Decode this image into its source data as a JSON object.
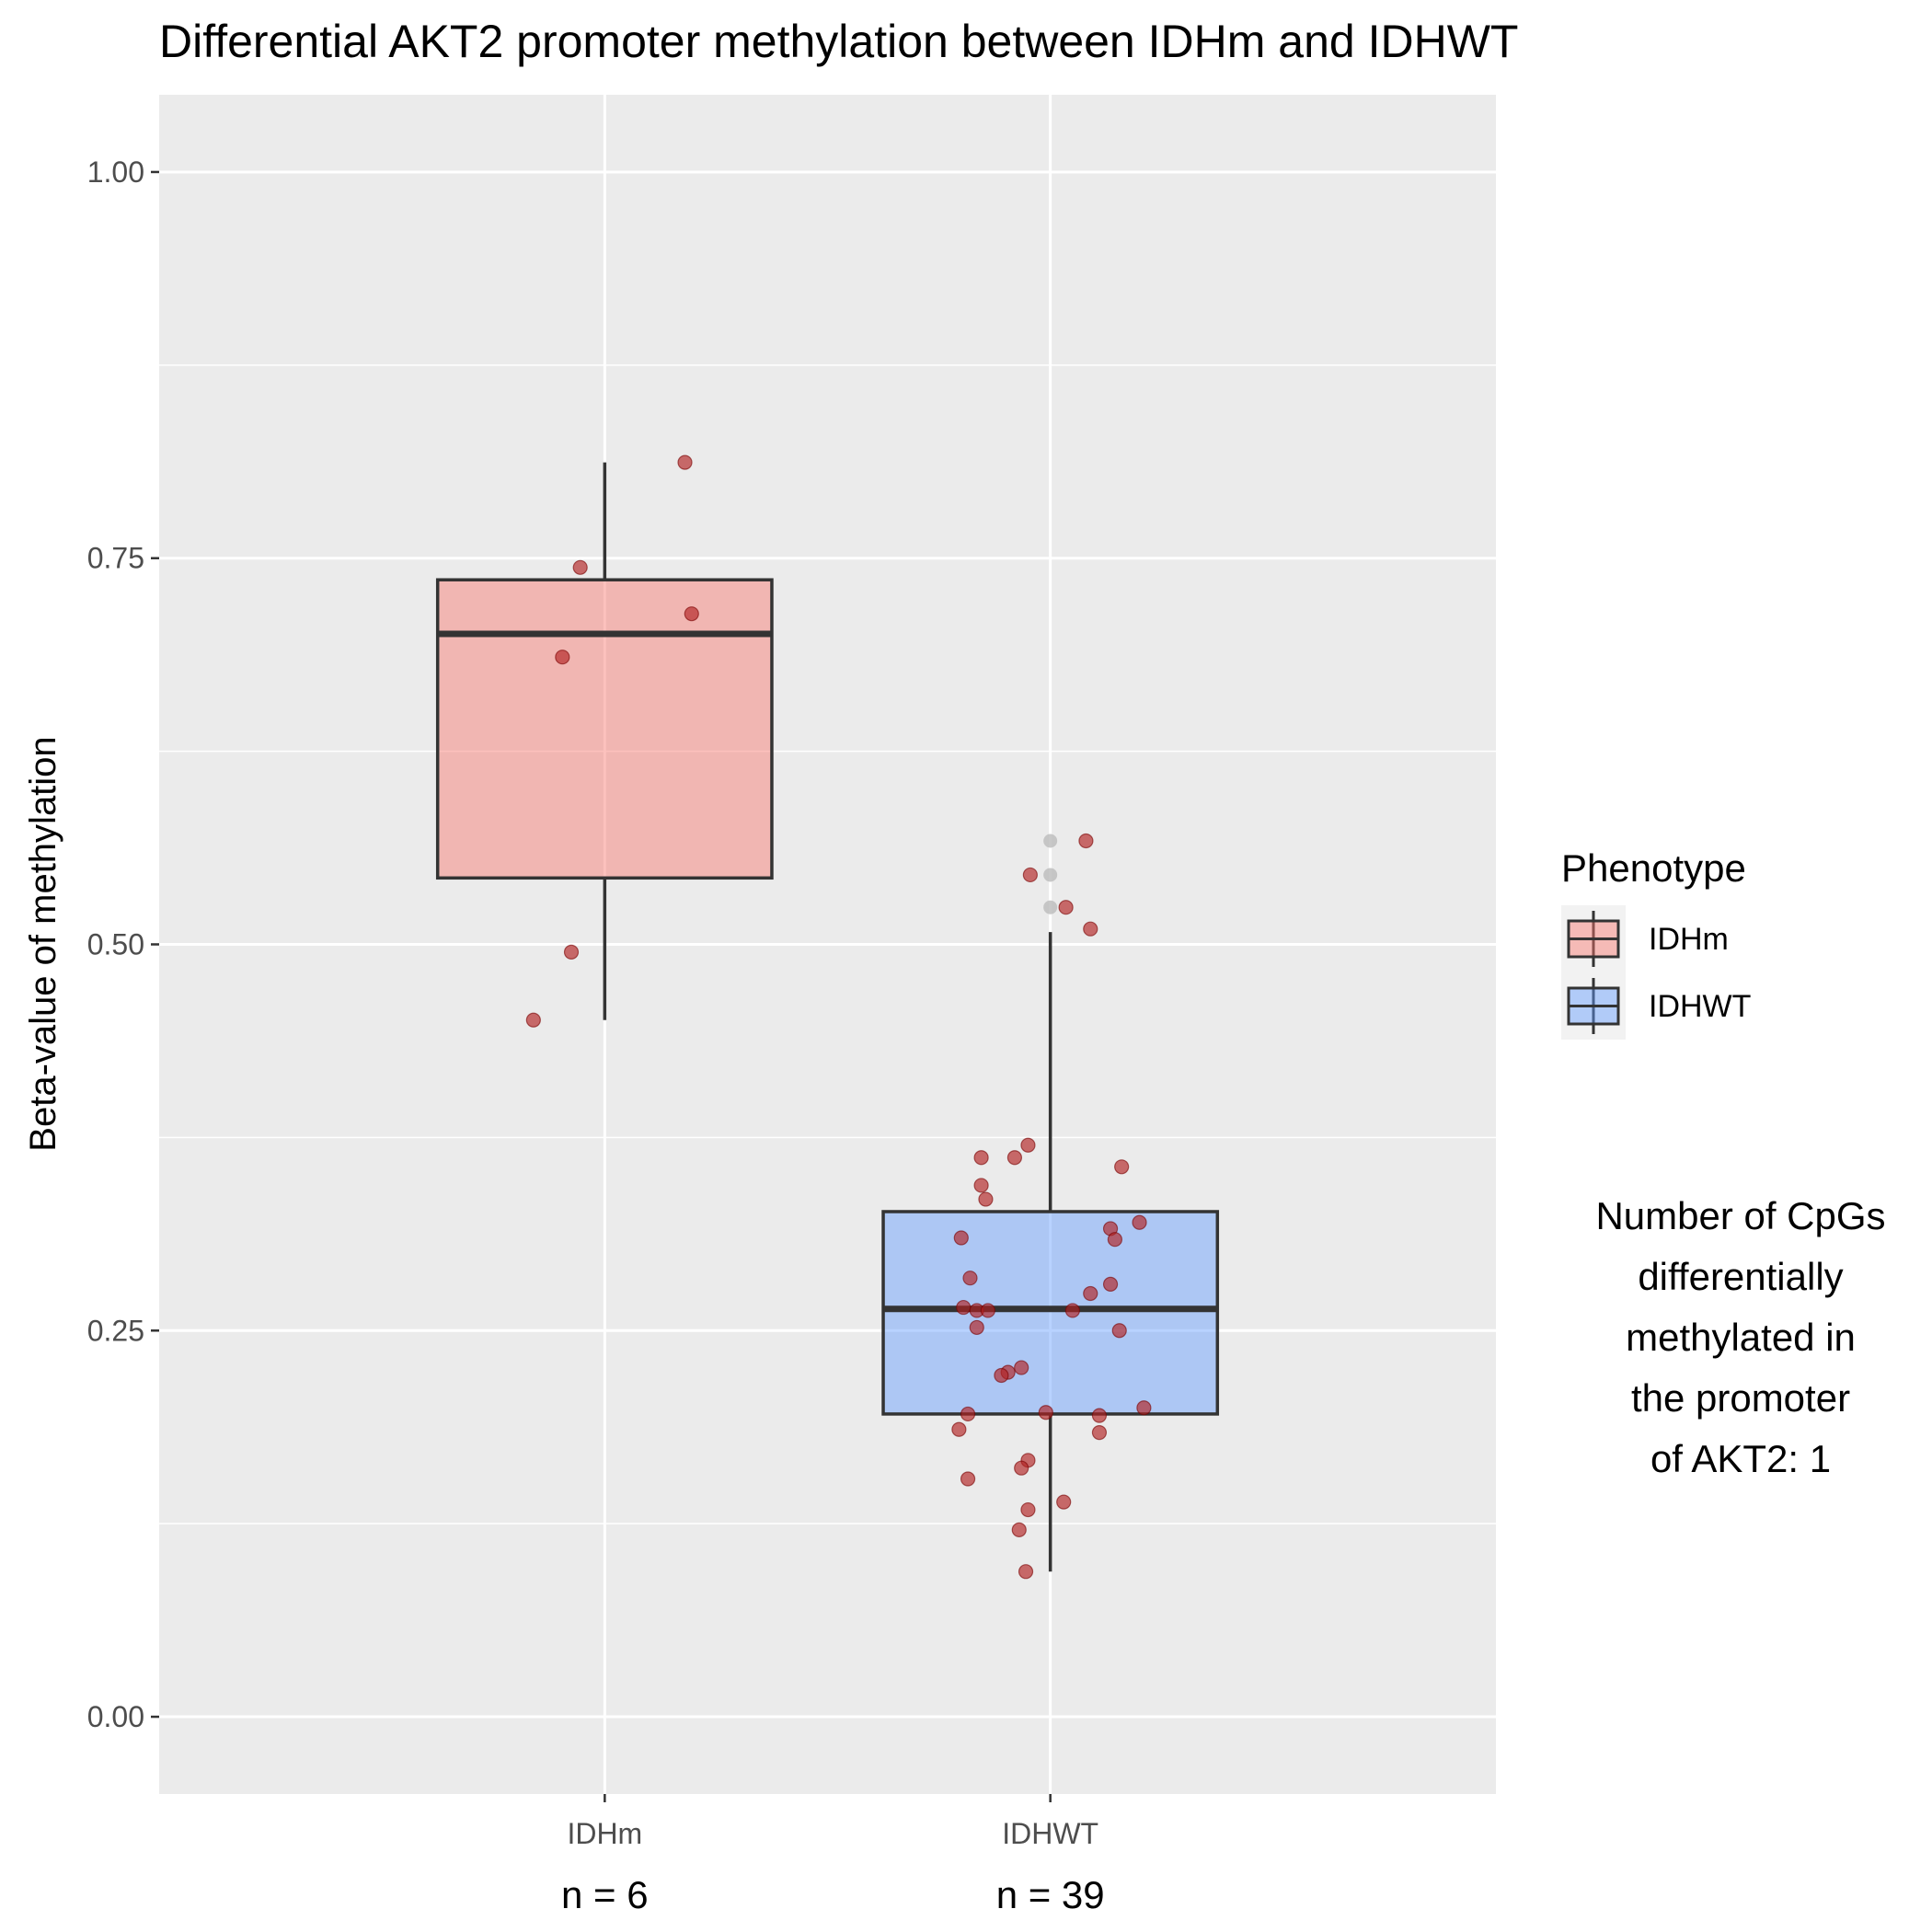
{
  "chart_data": {
    "type": "boxplot",
    "title": "Differential AKT2 promoter methylation between IDHm and IDHWT",
    "xlabel": "",
    "ylabel": "Beta-value of methylation",
    "ylim": [
      -0.05,
      1.05
    ],
    "yticks": [
      "0.00",
      "0.25",
      "0.50",
      "0.75",
      "1.00"
    ],
    "ytick_values": [
      0,
      0.25,
      0.5,
      0.75,
      1.0
    ],
    "grid": true,
    "categories": [
      "IDHm",
      "IDHWT"
    ],
    "counts": [
      "n = 6",
      "n = 39"
    ],
    "boxes": [
      {
        "name": "IDHm",
        "color": "#F8766D",
        "q1": 0.543,
        "median": 0.701,
        "q3": 0.736,
        "whisker_low": 0.451,
        "whisker_high": 0.812
      },
      {
        "name": "IDHWT",
        "color": "#619CFF",
        "q1": 0.196,
        "median": 0.264,
        "q3": 0.327,
        "whisker_low": 0.094,
        "whisker_high": 0.508
      }
    ],
    "points": [
      {
        "group": 0,
        "dx": -0.32,
        "y": 0.451
      },
      {
        "group": 0,
        "dx": -0.15,
        "y": 0.495
      },
      {
        "group": 0,
        "dx": -0.19,
        "y": 0.686
      },
      {
        "group": 0,
        "dx": -0.11,
        "y": 0.744
      },
      {
        "group": 0,
        "dx": 0.39,
        "y": 0.714
      },
      {
        "group": 0,
        "dx": 0.36,
        "y": 0.812
      },
      {
        "group": 1,
        "dx": 0.16,
        "y": 0.567
      },
      {
        "group": 1,
        "dx": -0.09,
        "y": 0.545
      },
      {
        "group": 1,
        "dx": 0.07,
        "y": 0.524
      },
      {
        "group": 1,
        "dx": 0.18,
        "y": 0.51
      },
      {
        "group": 1,
        "dx": -0.1,
        "y": 0.37
      },
      {
        "group": 1,
        "dx": -0.31,
        "y": 0.362
      },
      {
        "group": 1,
        "dx": -0.16,
        "y": 0.362
      },
      {
        "group": 1,
        "dx": 0.32,
        "y": 0.356
      },
      {
        "group": 1,
        "dx": -0.31,
        "y": 0.344
      },
      {
        "group": 1,
        "dx": -0.29,
        "y": 0.335
      },
      {
        "group": 1,
        "dx": 0.4,
        "y": 0.32
      },
      {
        "group": 1,
        "dx": 0.27,
        "y": 0.316
      },
      {
        "group": 1,
        "dx": -0.4,
        "y": 0.31
      },
      {
        "group": 1,
        "dx": 0.29,
        "y": 0.309
      },
      {
        "group": 1,
        "dx": -0.36,
        "y": 0.284
      },
      {
        "group": 1,
        "dx": 0.27,
        "y": 0.28
      },
      {
        "group": 1,
        "dx": 0.18,
        "y": 0.274
      },
      {
        "group": 1,
        "dx": -0.39,
        "y": 0.265
      },
      {
        "group": 1,
        "dx": -0.33,
        "y": 0.263
      },
      {
        "group": 1,
        "dx": -0.28,
        "y": 0.263
      },
      {
        "group": 1,
        "dx": 0.1,
        "y": 0.263
      },
      {
        "group": 1,
        "dx": -0.33,
        "y": 0.252
      },
      {
        "group": 1,
        "dx": 0.31,
        "y": 0.25
      },
      {
        "group": 1,
        "dx": -0.13,
        "y": 0.226
      },
      {
        "group": 1,
        "dx": -0.19,
        "y": 0.223
      },
      {
        "group": 1,
        "dx": -0.22,
        "y": 0.221
      },
      {
        "group": 1,
        "dx": 0.42,
        "y": 0.2
      },
      {
        "group": 1,
        "dx": -0.02,
        "y": 0.197
      },
      {
        "group": 1,
        "dx": -0.37,
        "y": 0.196
      },
      {
        "group": 1,
        "dx": 0.22,
        "y": 0.195
      },
      {
        "group": 1,
        "dx": -0.41,
        "y": 0.186
      },
      {
        "group": 1,
        "dx": 0.22,
        "y": 0.184
      },
      {
        "group": 1,
        "dx": -0.1,
        "y": 0.166
      },
      {
        "group": 1,
        "dx": -0.13,
        "y": 0.161
      },
      {
        "group": 1,
        "dx": -0.37,
        "y": 0.154
      },
      {
        "group": 1,
        "dx": 0.06,
        "y": 0.139
      },
      {
        "group": 1,
        "dx": -0.1,
        "y": 0.134
      },
      {
        "group": 1,
        "dx": -0.14,
        "y": 0.121
      },
      {
        "group": 1,
        "dx": -0.11,
        "y": 0.094
      }
    ],
    "outliers": [
      {
        "group": 1,
        "y": 0.567
      },
      {
        "group": 1,
        "y": 0.545
      },
      {
        "group": 1,
        "y": 0.524
      }
    ],
    "point_color": "#B22222",
    "outlier_color": "#BEBEBE",
    "legend": {
      "title": "Phenotype",
      "position": "right",
      "items": [
        {
          "label": "IDHm",
          "color": "#F8766D"
        },
        {
          "label": "IDHWT",
          "color": "#619CFF"
        }
      ]
    },
    "annotation": {
      "lines": [
        "Number of CpGs",
        "differentially",
        "methylated in",
        "the promoter",
        "of AKT2: 1"
      ]
    }
  }
}
